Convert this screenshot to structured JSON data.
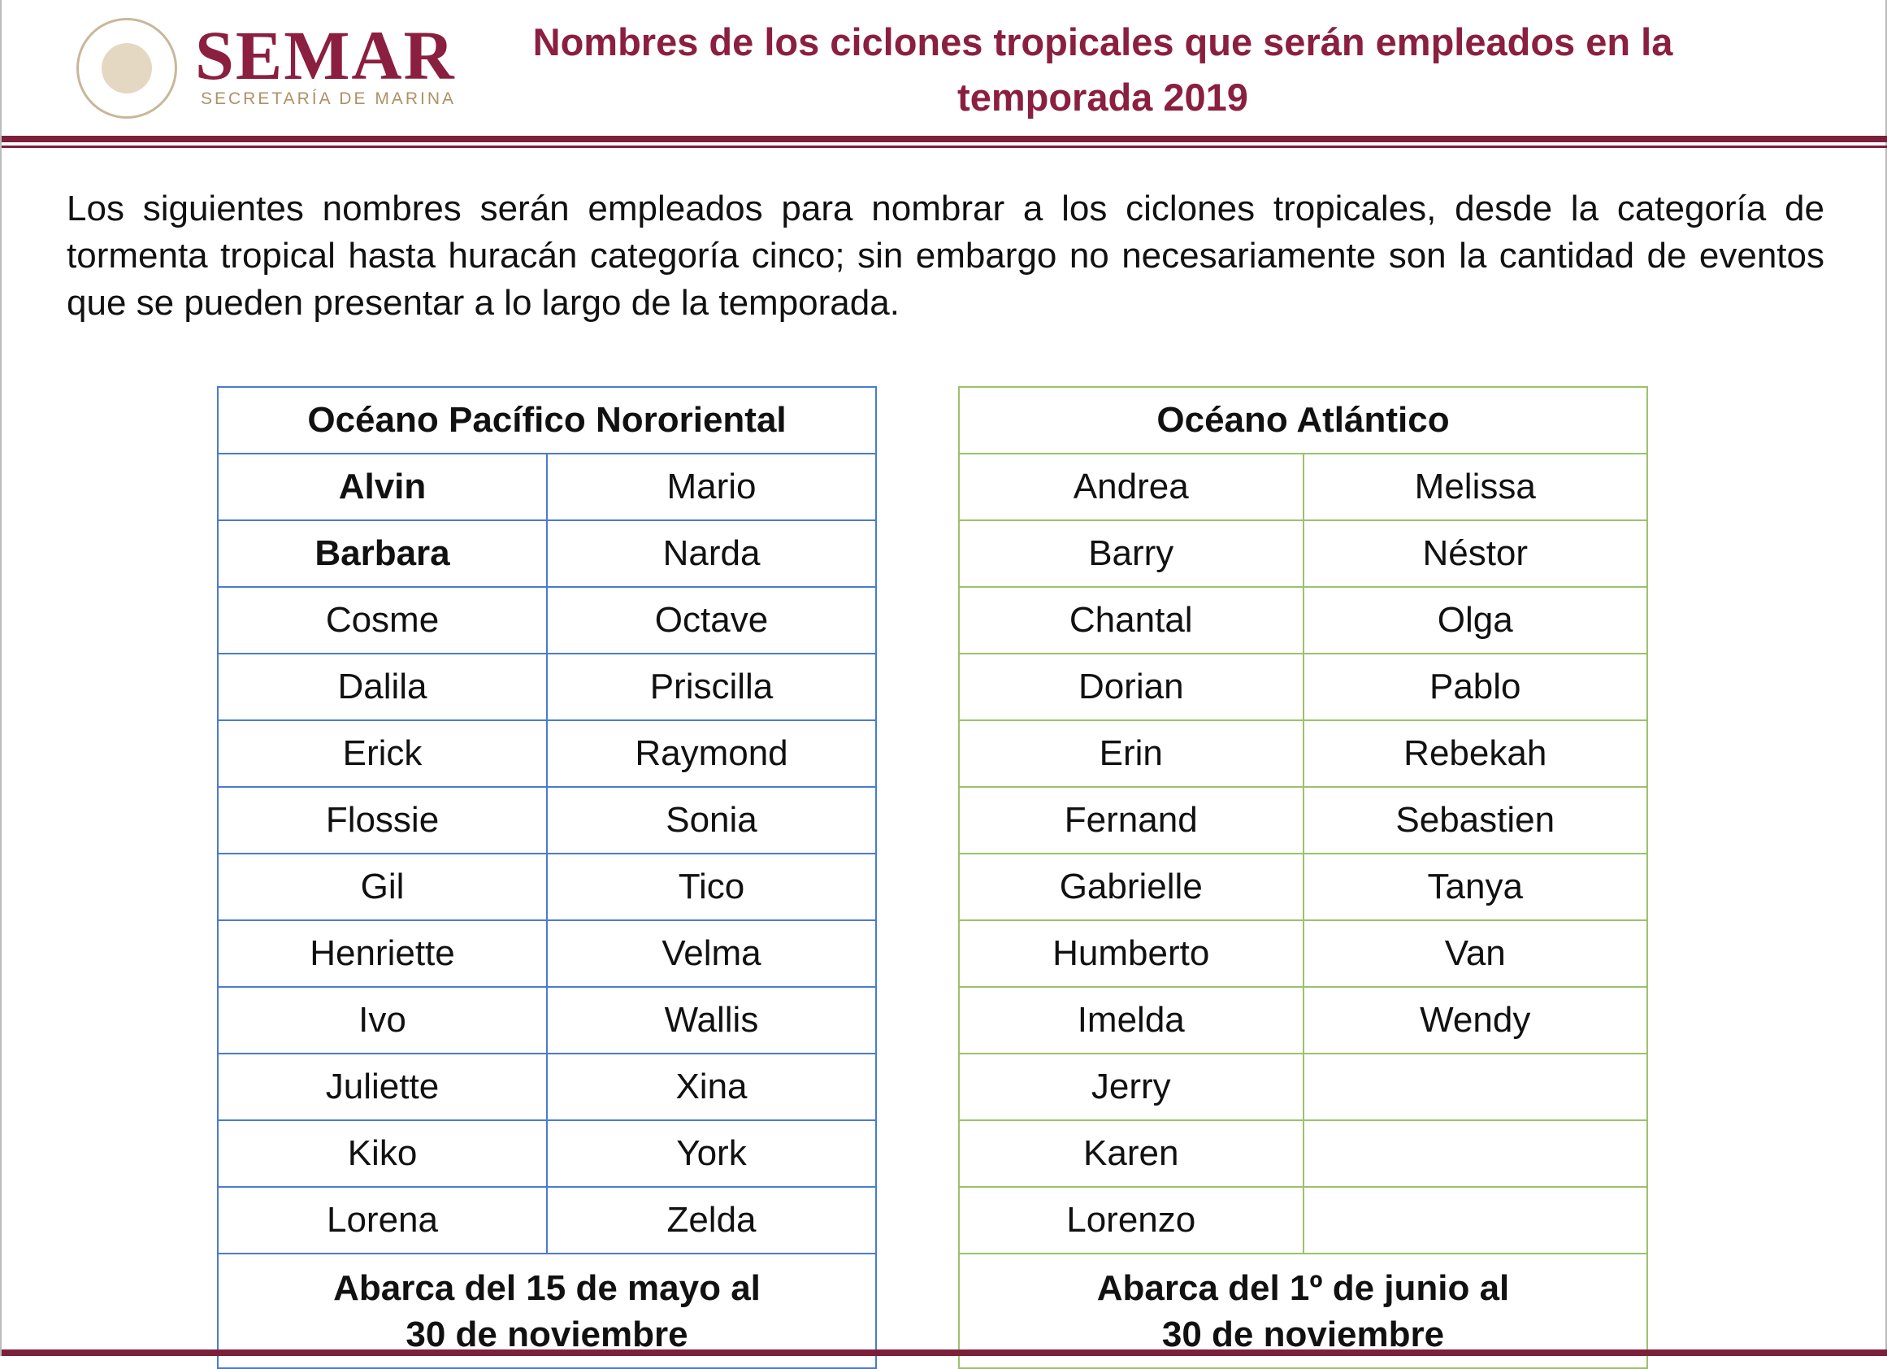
{
  "header": {
    "logo_name": "SEMAR",
    "logo_subtitle": "SECRETARÍA DE MARINA",
    "title_lines": [
      "Nombres de los ciclones tropicales que serán empleados en la",
      "temporada 2019"
    ]
  },
  "intro": "Los siguientes nombres serán empleados para nombrar a los ciclones tropicales, desde la categoría de tormenta tropical hasta huracán categoría cinco; sin embargo no necesariamente son la cantidad de eventos que se pueden presentar a lo largo de la temporada.",
  "tables": [
    {
      "title": "Océano Pacífico Nororiental",
      "rows": [
        [
          "Alvin",
          "Mario"
        ],
        [
          "Barbara",
          "Narda"
        ],
        [
          "Cosme",
          "Octave"
        ],
        [
          "Dalila",
          "Priscilla"
        ],
        [
          "Erick",
          "Raymond"
        ],
        [
          "Flossie",
          "Sonia"
        ],
        [
          "Gil",
          "Tico"
        ],
        [
          "Henriette",
          "Velma"
        ],
        [
          "Ivo",
          "Wallis"
        ],
        [
          "Juliette",
          "Xina"
        ],
        [
          "Kiko",
          "York"
        ],
        [
          "Lorena",
          "Zelda"
        ]
      ],
      "footer_lines": [
        "Abarca del 15 de mayo al",
        "30 de noviembre"
      ]
    },
    {
      "title": "Océano Atlántico",
      "rows": [
        [
          "Andrea",
          "Melissa"
        ],
        [
          "Barry",
          "Néstor"
        ],
        [
          "Chantal",
          "Olga"
        ],
        [
          "Dorian",
          "Pablo"
        ],
        [
          "Erin",
          "Rebekah"
        ],
        [
          "Fernand",
          "Sebastien"
        ],
        [
          "Gabrielle",
          "Tanya"
        ],
        [
          "Humberto",
          "Van"
        ],
        [
          "Imelda",
          "Wendy"
        ],
        [
          "Jerry"
        ],
        [
          "Karen"
        ],
        [
          "Lorenzo"
        ]
      ],
      "footer_lines": [
        "Abarca del 1º de junio al",
        "30 de noviembre"
      ]
    }
  ]
}
